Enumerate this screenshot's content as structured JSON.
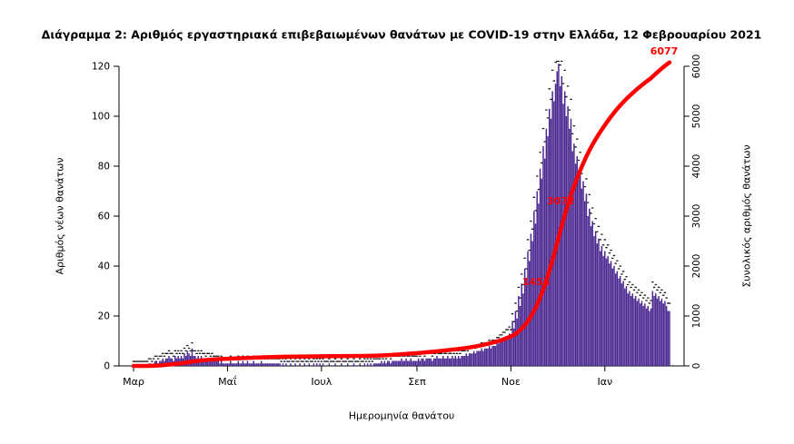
{
  "chart_data": {
    "type": "bar",
    "title": "Διάγραμμα 2: Αριθμός εργαστηριακά επιβεβαιωμένων θανάτων με COVID-19 στην Ελλάδα, 12 Φεβρουαρίου 2021",
    "xlabel": "Ημερομηνία θανάτου",
    "ylabel_left": "Αριθμός νέων θανάτων",
    "ylabel_right": "Συνολικός αριθμός θανάτων",
    "x_tick_labels": [
      "Μαρ",
      "Μαΐ",
      "Ιουλ",
      "Σεπ",
      "Νοε",
      "Ιαν"
    ],
    "x_tick_days": [
      0,
      61,
      122,
      184,
      245,
      306
    ],
    "y_left_ticks": [
      0,
      20,
      40,
      60,
      80,
      100,
      120
    ],
    "y_right_ticks": [
      0,
      1000,
      2000,
      3000,
      4000,
      5000,
      6000
    ],
    "ylim_left": [
      0,
      120
    ],
    "ylim_right": [
      0,
      6000
    ],
    "days": 349,
    "series": [
      {
        "name": "Αριθμός νέων θανάτων",
        "type": "bar",
        "color": "#4B2991",
        "values": [
          0,
          0,
          0,
          0,
          0,
          0,
          0,
          0,
          0,
          0,
          1,
          1,
          0,
          1,
          2,
          2,
          1,
          2,
          2,
          3,
          2,
          3,
          3,
          4,
          3,
          3,
          2,
          4,
          3,
          4,
          3,
          4,
          3,
          5,
          4,
          6,
          5,
          4,
          7,
          4,
          4,
          3,
          4,
          3,
          4,
          3,
          3,
          2,
          3,
          3,
          2,
          3,
          2,
          2,
          2,
          2,
          1,
          2,
          1,
          1,
          1,
          1,
          1,
          2,
          1,
          1,
          1,
          1,
          2,
          1,
          1,
          2,
          1,
          1,
          2,
          1,
          1,
          1,
          2,
          1,
          1,
          1,
          1,
          2,
          1,
          1,
          1,
          1,
          1,
          1,
          1,
          1,
          1,
          1,
          1,
          1,
          0,
          1,
          0,
          1,
          0,
          0,
          1,
          0,
          0,
          1,
          0,
          0,
          1,
          0,
          0,
          1,
          0,
          0,
          1,
          0,
          0,
          1,
          0,
          1,
          0,
          1,
          0,
          1,
          0,
          0,
          0,
          1,
          0,
          0,
          0,
          1,
          0,
          0,
          0,
          1,
          0,
          0,
          0,
          1,
          0,
          0,
          0,
          1,
          0,
          0,
          0,
          1,
          0,
          0,
          1,
          0,
          1,
          0,
          1,
          0,
          1,
          1,
          1,
          1,
          1,
          2,
          1,
          2,
          1,
          2,
          2,
          1,
          2,
          2,
          2,
          2,
          2,
          2,
          3,
          2,
          2,
          3,
          2,
          2,
          3,
          2,
          2,
          2,
          2,
          3,
          2,
          3,
          3,
          2,
          3,
          3,
          3,
          3,
          2,
          3,
          3,
          4,
          3,
          3,
          3,
          4,
          3,
          3,
          4,
          3,
          3,
          4,
          3,
          4,
          3,
          4,
          3,
          4,
          4,
          4,
          5,
          4,
          5,
          5,
          5,
          6,
          5,
          6,
          6,
          6,
          7,
          6,
          7,
          7,
          7,
          8,
          7,
          8,
          8,
          8,
          9,
          9,
          10,
          10,
          11,
          11,
          12,
          12,
          13,
          12,
          18,
          15,
          22,
          19,
          28,
          24,
          33,
          29,
          39,
          35,
          46,
          42,
          53,
          50,
          62,
          57,
          70,
          65,
          79,
          75,
          88,
          83,
          95,
          92,
          103,
          99,
          110,
          106,
          113,
          118,
          121,
          112,
          116,
          105,
          110,
          100,
          104,
          95,
          99,
          86,
          89,
          81,
          84,
          76,
          79,
          71,
          74,
          66,
          69,
          60,
          63,
          56,
          58,
          52,
          54,
          49,
          51,
          46,
          48,
          44,
          46,
          43,
          44,
          41,
          42,
          39,
          40,
          37,
          38,
          35,
          36,
          33,
          34,
          31,
          32,
          29,
          30,
          28,
          29,
          27,
          28,
          26,
          27,
          25,
          26,
          24,
          25,
          23,
          24,
          22,
          23,
          30,
          28,
          29,
          27,
          28,
          26,
          27,
          25,
          26,
          24,
          22,
          22
        ]
      },
      {
        "name": "Συνολικός αριθμός θανάτων",
        "type": "line",
        "color": "#FF0000",
        "derived_from": "cumulative sum of daily values",
        "final_value": 6077
      }
    ],
    "annotations": [
      {
        "label": "1454",
        "day": 265,
        "value": 1454
      },
      {
        "label": "3072",
        "day": 281,
        "value": 3072
      },
      {
        "label": "6077",
        "day": 348,
        "value": 6077
      }
    ]
  },
  "colors": {
    "bar": "#4B2991",
    "line": "#FF0000",
    "annotation": "#FF0000",
    "axis": "#000000",
    "background": "#FFFFFF"
  }
}
